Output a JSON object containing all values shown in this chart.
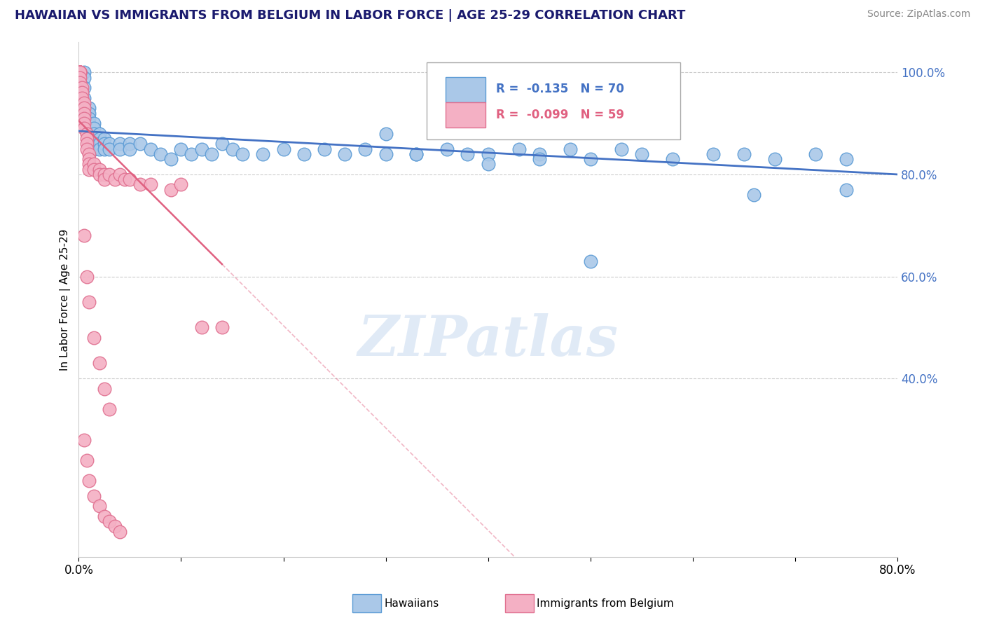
{
  "title": "HAWAIIAN VS IMMIGRANTS FROM BELGIUM IN LABOR FORCE | AGE 25-29 CORRELATION CHART",
  "source": "Source: ZipAtlas.com",
  "ylabel": "In Labor Force | Age 25-29",
  "xlim": [
    0.0,
    0.8
  ],
  "ylim": [
    0.05,
    1.06
  ],
  "ytick_vals": [
    0.4,
    0.6,
    0.8,
    1.0
  ],
  "ytick_labels": [
    "40.0%",
    "60.0%",
    "80.0%",
    "100.0%"
  ],
  "legend_blue_r": "-0.135",
  "legend_blue_n": "70",
  "legend_pink_r": "-0.099",
  "legend_pink_n": "59",
  "blue_color": "#aac8e8",
  "blue_edge": "#5b9bd5",
  "pink_color": "#f4b0c4",
  "pink_edge": "#e07090",
  "blue_line_color": "#4472c4",
  "pink_line_color": "#e06080",
  "blue_x": [
    0.005,
    0.005,
    0.005,
    0.005,
    0.005,
    0.01,
    0.01,
    0.01,
    0.01,
    0.01,
    0.015,
    0.015,
    0.015,
    0.015,
    0.015,
    0.015,
    0.02,
    0.02,
    0.02,
    0.02,
    0.025,
    0.025,
    0.025,
    0.03,
    0.03,
    0.04,
    0.04,
    0.05,
    0.05,
    0.06,
    0.07,
    0.08,
    0.09,
    0.1,
    0.11,
    0.12,
    0.13,
    0.14,
    0.15,
    0.16,
    0.18,
    0.2,
    0.22,
    0.24,
    0.26,
    0.28,
    0.3,
    0.33,
    0.36,
    0.38,
    0.4,
    0.43,
    0.45,
    0.48,
    0.5,
    0.53,
    0.55,
    0.58,
    0.62,
    0.65,
    0.68,
    0.72,
    0.75,
    0.3,
    0.33,
    0.4,
    0.45,
    0.5,
    0.66,
    0.75
  ],
  "blue_y": [
    1.0,
    0.99,
    0.97,
    0.95,
    0.92,
    0.93,
    0.92,
    0.91,
    0.9,
    0.88,
    0.9,
    0.89,
    0.88,
    0.87,
    0.86,
    0.85,
    0.88,
    0.87,
    0.86,
    0.85,
    0.87,
    0.86,
    0.85,
    0.86,
    0.85,
    0.86,
    0.85,
    0.86,
    0.85,
    0.86,
    0.85,
    0.84,
    0.83,
    0.85,
    0.84,
    0.85,
    0.84,
    0.86,
    0.85,
    0.84,
    0.84,
    0.85,
    0.84,
    0.85,
    0.84,
    0.85,
    0.84,
    0.84,
    0.85,
    0.84,
    0.84,
    0.85,
    0.84,
    0.85,
    0.83,
    0.85,
    0.84,
    0.83,
    0.84,
    0.84,
    0.83,
    0.84,
    0.83,
    0.88,
    0.84,
    0.82,
    0.83,
    0.63,
    0.76,
    0.77
  ],
  "pink_x": [
    0.001,
    0.001,
    0.001,
    0.001,
    0.001,
    0.001,
    0.001,
    0.001,
    0.001,
    0.003,
    0.003,
    0.003,
    0.005,
    0.005,
    0.005,
    0.005,
    0.005,
    0.005,
    0.008,
    0.008,
    0.008,
    0.008,
    0.01,
    0.01,
    0.01,
    0.01,
    0.015,
    0.015,
    0.02,
    0.02,
    0.025,
    0.025,
    0.03,
    0.035,
    0.04,
    0.045,
    0.05,
    0.06,
    0.07,
    0.09,
    0.1,
    0.12,
    0.14,
    0.005,
    0.008,
    0.01,
    0.015,
    0.02,
    0.025,
    0.03,
    0.005,
    0.008,
    0.01,
    0.015,
    0.02,
    0.025,
    0.03,
    0.035,
    0.04
  ],
  "pink_y": [
    1.0,
    1.0,
    1.0,
    1.0,
    1.0,
    1.0,
    1.0,
    0.99,
    0.98,
    0.97,
    0.96,
    0.95,
    0.94,
    0.93,
    0.92,
    0.91,
    0.9,
    0.89,
    0.88,
    0.87,
    0.86,
    0.85,
    0.84,
    0.83,
    0.82,
    0.81,
    0.82,
    0.81,
    0.81,
    0.8,
    0.8,
    0.79,
    0.8,
    0.79,
    0.8,
    0.79,
    0.79,
    0.78,
    0.78,
    0.77,
    0.78,
    0.5,
    0.5,
    0.68,
    0.6,
    0.55,
    0.48,
    0.43,
    0.38,
    0.34,
    0.28,
    0.24,
    0.2,
    0.17,
    0.15,
    0.13,
    0.12,
    0.11,
    0.1
  ]
}
